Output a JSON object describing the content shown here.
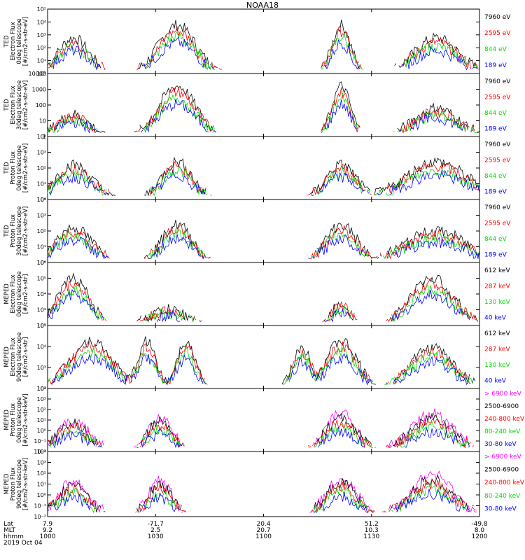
{
  "title": "NOAA18",
  "x_axis": {
    "row_labels": [
      "Lat",
      "MLT",
      "hhmm",
      "2019 Oct 04"
    ],
    "ticks": [
      {
        "lat": "7.9",
        "mlt": "9.2",
        "hhmm": "1000"
      },
      {
        "lat": "-71.7",
        "mlt": "2.5",
        "hhmm": "1030"
      },
      {
        "lat": "20.4",
        "mlt": "20.7",
        "hhmm": "1100"
      },
      {
        "lat": "51.2",
        "mlt": "10.3",
        "hhmm": "1130"
      },
      {
        "lat": "-49.8",
        "mlt": "8.0",
        "hhmm": "1200"
      }
    ]
  },
  "chart_data": [
    {
      "type": "line",
      "panel": "TED electron 0deg",
      "ylabel": [
        "TED",
        "Electron Flux",
        "0deg telescope",
        "[#/cm2-s-str-eV]"
      ],
      "yticks": [
        "10⁰",
        "10¹",
        "10²",
        "10³",
        "10⁴",
        "10⁵"
      ],
      "ylog": [
        0,
        5
      ],
      "series": [
        {
          "name": "7960 eV",
          "color": "#000000"
        },
        {
          "name": "2595 eV",
          "color": "#ff0000"
        },
        {
          "name": "844 eV",
          "color": "#00dd00"
        },
        {
          "name": "189 eV",
          "color": "#0000ff"
        }
      ]
    },
    {
      "type": "line",
      "panel": "TED electron 30deg",
      "ylabel": [
        "TED",
        "Electron Flux",
        "30deg telescope",
        "[#/cm2-s-str-eV]"
      ],
      "yticks": [
        "1",
        "10",
        "100",
        "1000",
        "10000"
      ],
      "ylog": [
        0,
        4
      ],
      "series": [
        {
          "name": "7960 eV",
          "color": "#000000"
        },
        {
          "name": "2595 eV",
          "color": "#ff0000"
        },
        {
          "name": "844 eV",
          "color": "#00dd00"
        },
        {
          "name": "189 eV",
          "color": "#0000ff"
        }
      ]
    },
    {
      "type": "line",
      "panel": "TED proton 0deg",
      "ylabel": [
        "TED",
        "Proton Flux",
        "0deg telescope",
        "[#/cm2-s-str-eV]"
      ],
      "yticks": [
        "10⁰",
        "10¹",
        "10²",
        "10³",
        "10⁴"
      ],
      "ylog": [
        0,
        4
      ],
      "series": [
        {
          "name": "7960 eV",
          "color": "#000000"
        },
        {
          "name": "2595 eV",
          "color": "#ff0000"
        },
        {
          "name": "844 eV",
          "color": "#00dd00"
        },
        {
          "name": "189 eV",
          "color": "#0000ff"
        }
      ]
    },
    {
      "type": "line",
      "panel": "TED proton 30deg",
      "ylabel": [
        "TED",
        "Proton Flux",
        "30deg telescope",
        "[#/cm2-s-str-eV]"
      ],
      "yticks": [
        "10⁰",
        "10¹",
        "10²",
        "10³",
        "10⁴"
      ],
      "ylog": [
        0,
        4
      ],
      "series": [
        {
          "name": "7960 eV",
          "color": "#000000"
        },
        {
          "name": "2595 eV",
          "color": "#ff0000"
        },
        {
          "name": "844 eV",
          "color": "#00dd00"
        },
        {
          "name": "189 eV",
          "color": "#0000ff"
        }
      ]
    },
    {
      "type": "line",
      "panel": "MEPED electron 0deg",
      "ylabel": [
        "MEPED",
        "Electron Flux",
        "0deg telescope",
        "[#/cm2-s-str]"
      ],
      "yticks": [
        "10²",
        "10³",
        "10⁴",
        "10⁵",
        "10⁶"
      ],
      "ylog": [
        2,
        6
      ],
      "series": [
        {
          "name": "612 keV",
          "color": "#000000"
        },
        {
          "name": "287 keV",
          "color": "#ff0000"
        },
        {
          "name": "130 keV",
          "color": "#00dd00"
        },
        {
          "name": "40 keV",
          "color": "#0000ff"
        }
      ]
    },
    {
      "type": "line",
      "panel": "MEPED electron 90deg",
      "ylabel": [
        "MEPED",
        "Electron Flux",
        "90deg telescope",
        "[#/cm2-s-str]"
      ],
      "yticks": [
        "10²",
        "10³",
        "10⁴",
        "10⁵"
      ],
      "ylog": [
        2,
        5
      ],
      "series": [
        {
          "name": "612 keV",
          "color": "#000000"
        },
        {
          "name": "287 keV",
          "color": "#ff0000"
        },
        {
          "name": "130 keV",
          "color": "#00dd00"
        },
        {
          "name": "40 keV",
          "color": "#0000ff"
        }
      ]
    },
    {
      "type": "line",
      "panel": "MEPED proton 0deg",
      "ylabel": [
        "MEPED",
        "Proton Flux",
        "0deg telescope",
        "[#/cm2-s-str-keV]"
      ],
      "yticks": [
        "10⁻²",
        "10⁻¹",
        "10⁰",
        "10¹",
        "10²",
        "10³",
        "10⁴"
      ],
      "ylog": [
        -2,
        4
      ],
      "series": [
        {
          "name": "> 6900 keV",
          "color": "#ff00ff"
        },
        {
          "name": "2500-6900",
          "color": "#000000"
        },
        {
          "name": "240-800 keV",
          "color": "#ff0000"
        },
        {
          "name": "80-240 keV",
          "color": "#00dd00"
        },
        {
          "name": "30-80 keV",
          "color": "#0000ff"
        }
      ]
    },
    {
      "type": "line",
      "panel": "MEPED proton 90deg",
      "ylabel": [
        "MEPED",
        "Proton Flux",
        "90deg telescope",
        "[#/cm2-s-str-keV]"
      ],
      "yticks": [
        "10⁻²",
        "10⁻¹",
        "10⁰",
        "10¹",
        "10²",
        "10³",
        "10⁴"
      ],
      "ylog": [
        -2,
        4
      ],
      "series": [
        {
          "name": "> 6900 keV",
          "color": "#ff00ff"
        },
        {
          "name": "2500-6900",
          "color": "#000000"
        },
        {
          "name": "240-800 keV",
          "color": "#ff0000"
        },
        {
          "name": "80-240 keV",
          "color": "#00dd00"
        },
        {
          "name": "30-80 keV",
          "color": "#0000ff"
        }
      ]
    }
  ]
}
